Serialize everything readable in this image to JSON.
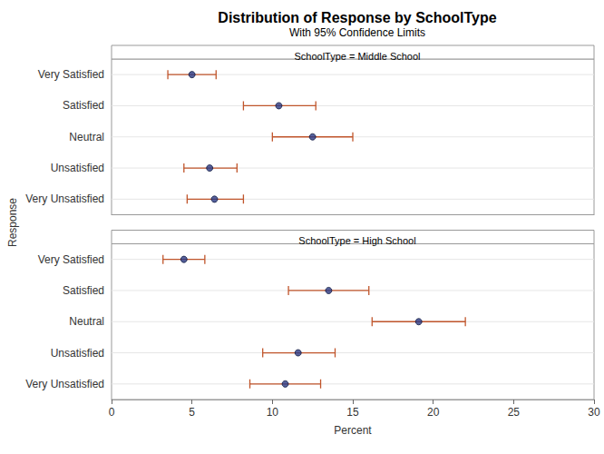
{
  "chart_data": {
    "type": "scatter",
    "title": "Distribution of Response by SchoolType",
    "subtitle": "With 95% Confidence Limits",
    "x_label": "Percent",
    "y_label": "Response",
    "orientation": "horizontal",
    "grid": true,
    "color": "#2b3a84",
    "marker": "circle",
    "categories": [
      "Very Satisfied",
      "Satisfied",
      "Neutral",
      "Unsatisfied",
      "Very Unsatisfied"
    ],
    "panels": [
      {
        "title": "SchoolType = Middle School",
        "values": [
          5.0,
          10.4,
          12.5,
          6.1,
          6.4
        ],
        "lower": [
          3.5,
          8.2,
          10.0,
          4.5,
          4.7
        ],
        "upper": [
          6.5,
          12.7,
          15.0,
          7.8,
          8.2
        ]
      },
      {
        "title": "SchoolType = High School",
        "values": [
          4.5,
          13.5,
          19.1,
          11.6,
          10.8
        ],
        "lower": [
          3.2,
          11.0,
          16.2,
          9.4,
          8.6
        ],
        "upper": [
          5.8,
          16.0,
          22.0,
          13.9,
          13.0
        ]
      }
    ],
    "xlim": [
      0,
      30
    ],
    "xticks": [
      0,
      5,
      10,
      15,
      20,
      25,
      30
    ]
  }
}
